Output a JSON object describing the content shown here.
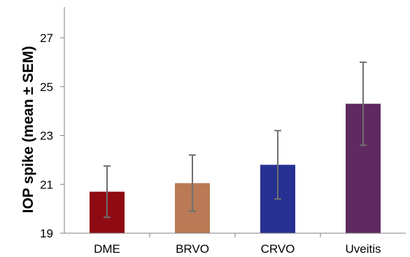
{
  "chart_data": {
    "type": "bar",
    "title": "",
    "xlabel": "",
    "ylabel": "IOP spike (mean ± SEM)",
    "ylim": [
      19,
      28.2
    ],
    "yticks": [
      19,
      21,
      23,
      25,
      27
    ],
    "grid": false,
    "categories": [
      "DME",
      "BRVO",
      "CRVO",
      "Uveitis"
    ],
    "series": [
      {
        "values": [
          20.7,
          21.05,
          21.8,
          24.3
        ],
        "error_low": [
          19.65,
          19.9,
          20.4,
          22.6
        ],
        "error_high": [
          21.75,
          22.2,
          23.2,
          26.0
        ],
        "colors": [
          "#8e0b14",
          "#b97a55",
          "#253092",
          "#5e2a5f"
        ]
      }
    ]
  }
}
